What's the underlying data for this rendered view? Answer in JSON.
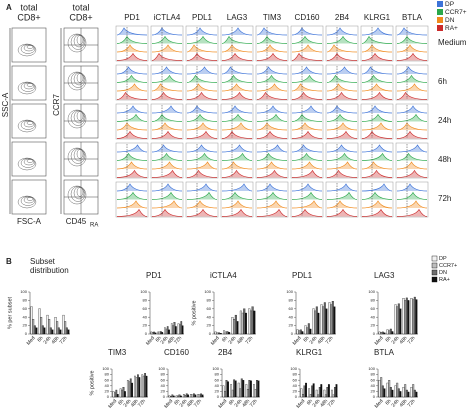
{
  "panel_a": {
    "label": "A",
    "col1_title": "total",
    "col1_sub": "CD8+",
    "col2_title": "total",
    "col2_sub": "CD8+",
    "ssc": "SSC-A",
    "fsc": "FSC-A",
    "ccr7": "CCR7",
    "cd45": "CD45",
    "cd45_sub": "RA",
    "markers": [
      "PD1",
      "iCTLA4",
      "PDL1",
      "LAG3",
      "TIM3",
      "CD160",
      "2B4",
      "KLRG1",
      "BTLA"
    ],
    "timepoints": [
      "Medium",
      "6h",
      "24h",
      "48h",
      "72h"
    ],
    "legend": [
      {
        "name": "DP",
        "color": "#3d73d8"
      },
      {
        "name": "CCR7+",
        "color": "#2aa84a"
      },
      {
        "name": "DN",
        "color": "#f08a1c"
      },
      {
        "name": "RA+",
        "color": "#cc2a2a"
      }
    ]
  },
  "panel_b": {
    "label": "B",
    "legend": [
      {
        "name": "DP",
        "color": "#f2f2f2"
      },
      {
        "name": "CCR7+",
        "color": "#bdbdbd"
      },
      {
        "name": "DN",
        "color": "#6e6e6e"
      },
      {
        "name": "RA+",
        "color": "#111111"
      }
    ]
  },
  "chart_data": [
    {
      "type": "bar",
      "title": "Subset distribution",
      "ylabel": "% per subset",
      "categories": [
        "Med",
        "6h",
        "24h",
        "48h",
        "72h"
      ],
      "ylim": [
        0,
        100
      ],
      "yticks": [
        0,
        20,
        40,
        60,
        80,
        100
      ],
      "series": [
        {
          "values": [
            65,
            60,
            45,
            40,
            45
          ]
        },
        {
          "values": [
            35,
            40,
            35,
            30,
            30
          ]
        },
        {
          "values": [
            20,
            20,
            15,
            15,
            15
          ]
        },
        {
          "values": [
            15,
            15,
            10,
            10,
            10
          ]
        }
      ]
    },
    {
      "type": "bar",
      "title": "PD1",
      "categories": [
        "Med",
        "6h",
        "24h",
        "48h",
        "72h"
      ],
      "ylim": [
        0,
        100
      ],
      "yticks": [
        0,
        20,
        40,
        60,
        80,
        100
      ],
      "series": [
        {
          "values": [
            5,
            5,
            15,
            25,
            25
          ]
        },
        {
          "values": [
            4,
            5,
            12,
            20,
            22
          ]
        },
        {
          "values": [
            5,
            6,
            18,
            28,
            30
          ]
        },
        {
          "values": [
            3,
            4,
            10,
            18,
            20
          ]
        }
      ]
    },
    {
      "type": "bar",
      "title": "iCTLA4",
      "ylabel": "% positive",
      "categories": [
        "Med",
        "6h",
        "24h",
        "48h",
        "72h"
      ],
      "ylim": [
        0,
        100
      ],
      "yticks": [
        0,
        20,
        40,
        60,
        80,
        100
      ],
      "series": [
        {
          "values": [
            5,
            8,
            40,
            55,
            60
          ]
        },
        {
          "values": [
            3,
            5,
            35,
            50,
            55
          ]
        },
        {
          "values": [
            3,
            6,
            45,
            60,
            65
          ]
        },
        {
          "values": [
            2,
            4,
            30,
            50,
            55
          ]
        }
      ]
    },
    {
      "type": "bar",
      "title": "PDL1",
      "categories": [
        "Med",
        "6h",
        "24h",
        "48h",
        "72h"
      ],
      "ylim": [
        0,
        100
      ],
      "yticks": [
        0,
        20,
        40,
        60,
        80,
        100
      ],
      "series": [
        {
          "values": [
            10,
            20,
            60,
            70,
            75
          ]
        },
        {
          "values": [
            8,
            15,
            55,
            65,
            70
          ]
        },
        {
          "values": [
            10,
            25,
            65,
            75,
            78
          ]
        },
        {
          "values": [
            6,
            12,
            50,
            60,
            65
          ]
        }
      ]
    },
    {
      "type": "bar",
      "title": "LAG3",
      "categories": [
        "Med",
        "6h",
        "24h",
        "48h",
        "72h"
      ],
      "ylim": [
        0,
        100
      ],
      "yticks": [
        0,
        20,
        40,
        60,
        80,
        100
      ],
      "series": [
        {
          "values": [
            5,
            10,
            70,
            85,
            85
          ]
        },
        {
          "values": [
            4,
            8,
            65,
            80,
            82
          ]
        },
        {
          "values": [
            5,
            12,
            72,
            86,
            88
          ]
        },
        {
          "values": [
            3,
            6,
            60,
            80,
            82
          ]
        }
      ]
    },
    {
      "type": "bar",
      "title": "TIM3",
      "ylabel": "% positive",
      "categories": [
        "Med",
        "6h",
        "24h",
        "48h",
        "72h"
      ],
      "ylim": [
        0,
        100
      ],
      "yticks": [
        0,
        20,
        40,
        60,
        80,
        100
      ],
      "series": [
        {
          "values": [
            20,
            30,
            60,
            75,
            80
          ]
        },
        {
          "values": [
            15,
            25,
            55,
            70,
            75
          ]
        },
        {
          "values": [
            25,
            35,
            65,
            80,
            85
          ]
        },
        {
          "values": [
            10,
            20,
            50,
            70,
            75
          ]
        }
      ]
    },
    {
      "type": "bar",
      "title": "CD160",
      "categories": [
        "Med",
        "6h",
        "24h",
        "48h",
        "72h"
      ],
      "ylim": [
        0,
        100
      ],
      "yticks": [
        0,
        20,
        40,
        60,
        80,
        100
      ],
      "series": [
        {
          "values": [
            5,
            5,
            10,
            10,
            10
          ]
        },
        {
          "values": [
            3,
            4,
            6,
            8,
            8
          ]
        },
        {
          "values": [
            8,
            8,
            12,
            12,
            12
          ]
        },
        {
          "values": [
            4,
            4,
            8,
            8,
            8
          ]
        }
      ]
    },
    {
      "type": "bar",
      "title": "2B4",
      "categories": [
        "Med",
        "6h",
        "24h",
        "48h",
        "72h"
      ],
      "ylim": [
        0,
        100
      ],
      "yticks": [
        0,
        20,
        40,
        60,
        80,
        100
      ],
      "series": [
        {
          "values": [
            40,
            45,
            50,
            45,
            45
          ]
        },
        {
          "values": [
            20,
            25,
            30,
            28,
            28
          ]
        },
        {
          "values": [
            60,
            62,
            65,
            60,
            60
          ]
        },
        {
          "values": [
            55,
            58,
            60,
            58,
            58
          ]
        }
      ]
    },
    {
      "type": "bar",
      "title": "KLRG1",
      "categories": [
        "Med",
        "6h",
        "24h",
        "48h",
        "72h"
      ],
      "ylim": [
        0,
        100
      ],
      "yticks": [
        0,
        20,
        40,
        60,
        80,
        100
      ],
      "series": [
        {
          "values": [
            30,
            30,
            25,
            25,
            25
          ]
        },
        {
          "values": [
            10,
            10,
            8,
            8,
            8
          ]
        },
        {
          "values": [
            40,
            40,
            35,
            35,
            35
          ]
        },
        {
          "values": [
            50,
            48,
            45,
            45,
            45
          ]
        }
      ]
    },
    {
      "type": "bar",
      "title": "BTLA",
      "categories": [
        "Med",
        "6h",
        "24h",
        "48h",
        "72h"
      ],
      "ylim": [
        0,
        100
      ],
      "yticks": [
        0,
        20,
        40,
        60,
        80,
        100
      ],
      "series": [
        {
          "values": [
            60,
            50,
            40,
            35,
            35
          ]
        },
        {
          "values": [
            70,
            60,
            50,
            45,
            45
          ]
        },
        {
          "values": [
            40,
            35,
            30,
            25,
            25
          ]
        },
        {
          "values": [
            30,
            25,
            20,
            18,
            18
          ]
        }
      ]
    }
  ]
}
